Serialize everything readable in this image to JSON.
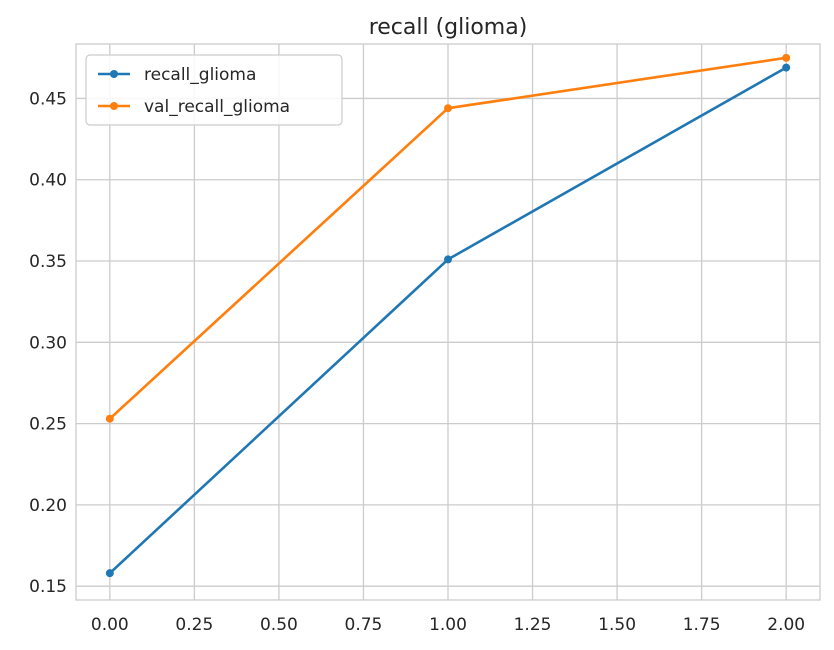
{
  "chart_data": {
    "type": "line",
    "title": "recall (glioma)",
    "xlabel": "",
    "ylabel": "",
    "xlim": [
      -0.1,
      2.1
    ],
    "ylim": [
      0.1415,
      0.4835
    ],
    "xticks": [
      0.0,
      0.25,
      0.5,
      0.75,
      1.0,
      1.25,
      1.5,
      1.75,
      2.0
    ],
    "xtick_labels": [
      "0.00",
      "0.25",
      "0.50",
      "0.75",
      "1.00",
      "1.25",
      "1.50",
      "1.75",
      "2.00"
    ],
    "yticks": [
      0.15,
      0.2,
      0.25,
      0.3,
      0.35,
      0.4,
      0.45
    ],
    "ytick_labels": [
      "0.15",
      "0.20",
      "0.25",
      "0.30",
      "0.35",
      "0.40",
      "0.45"
    ],
    "grid": true,
    "legend_position": "top-left",
    "x": [
      0,
      1,
      2
    ],
    "series": [
      {
        "name": "recall_glioma",
        "color": "#1f77b4",
        "marker": "circle",
        "values": [
          0.158,
          0.351,
          0.469
        ]
      },
      {
        "name": "val_recall_glioma",
        "color": "#ff7f0e",
        "marker": "circle",
        "values": [
          0.253,
          0.444,
          0.475
        ]
      }
    ]
  }
}
